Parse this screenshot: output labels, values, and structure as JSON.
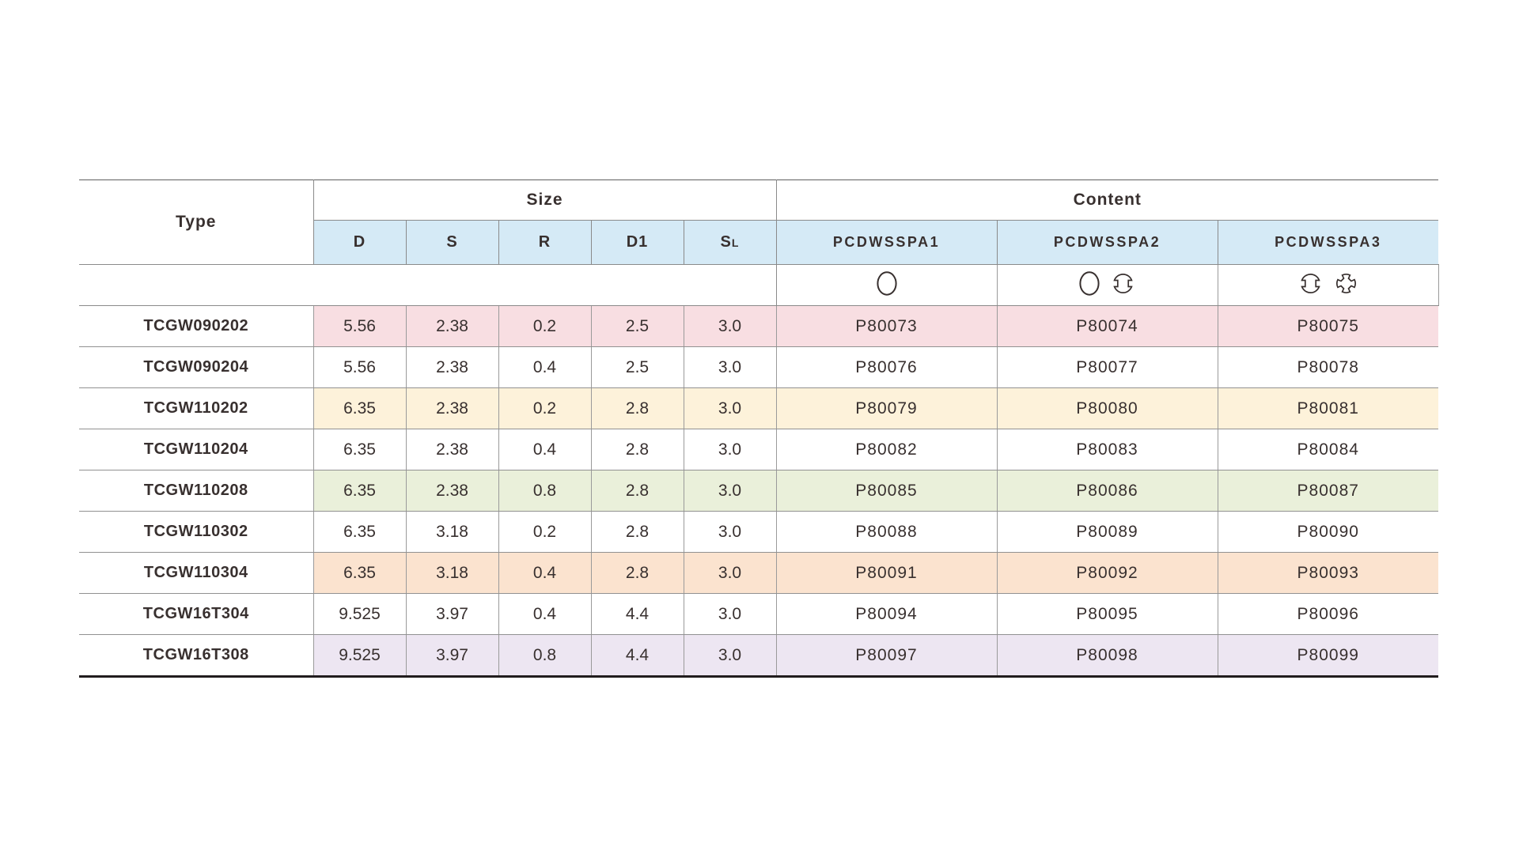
{
  "table": {
    "headers": {
      "type": "Type",
      "size": "Size",
      "content": "Content",
      "size_cols": [
        "D",
        "S",
        "R",
        "D1"
      ],
      "sl_main": "S",
      "sl_sub": "L",
      "content_cols": [
        "PCDWSSPA1",
        "PCDWSSPA2",
        "PCDWSSPA3"
      ]
    },
    "icon_columns": [
      [
        "circle"
      ],
      [
        "circle",
        "circle-2-notch"
      ],
      [
        "circle-2-notch",
        "circle-4-notch"
      ]
    ],
    "colors": {
      "header_blue": "#d5eaf6",
      "pink": "#f8dee2",
      "cream": "#fdf2da",
      "green": "#eaf0da",
      "peach": "#fbe3cf",
      "lavender": "#ede6f2",
      "icon_stroke": "#38302f",
      "text": "#38302f"
    },
    "rows": [
      {
        "type": "TCGW090202",
        "d": "5.56",
        "s": "2.38",
        "r": "0.2",
        "d1": "2.5",
        "sl": "3.0",
        "p1": "P80073",
        "p2": "P80074",
        "p3": "P80075",
        "highlight": "pink"
      },
      {
        "type": "TCGW090204",
        "d": "5.56",
        "s": "2.38",
        "r": "0.4",
        "d1": "2.5",
        "sl": "3.0",
        "p1": "P80076",
        "p2": "P80077",
        "p3": "P80078",
        "highlight": null
      },
      {
        "type": "TCGW110202",
        "d": "6.35",
        "s": "2.38",
        "r": "0.2",
        "d1": "2.8",
        "sl": "3.0",
        "p1": "P80079",
        "p2": "P80080",
        "p3": "P80081",
        "highlight": "cream"
      },
      {
        "type": "TCGW110204",
        "d": "6.35",
        "s": "2.38",
        "r": "0.4",
        "d1": "2.8",
        "sl": "3.0",
        "p1": "P80082",
        "p2": "P80083",
        "p3": "P80084",
        "highlight": null
      },
      {
        "type": "TCGW110208",
        "d": "6.35",
        "s": "2.38",
        "r": "0.8",
        "d1": "2.8",
        "sl": "3.0",
        "p1": "P80085",
        "p2": "P80086",
        "p3": "P80087",
        "highlight": "green"
      },
      {
        "type": "TCGW110302",
        "d": "6.35",
        "s": "3.18",
        "r": "0.2",
        "d1": "2.8",
        "sl": "3.0",
        "p1": "P80088",
        "p2": "P80089",
        "p3": "P80090",
        "highlight": null
      },
      {
        "type": "TCGW110304",
        "d": "6.35",
        "s": "3.18",
        "r": "0.4",
        "d1": "2.8",
        "sl": "3.0",
        "p1": "P80091",
        "p2": "P80092",
        "p3": "P80093",
        "highlight": "peach"
      },
      {
        "type": "TCGW16T304",
        "d": "9.525",
        "s": "3.97",
        "r": "0.4",
        "d1": "4.4",
        "sl": "3.0",
        "p1": "P80094",
        "p2": "P80095",
        "p3": "P80096",
        "highlight": null
      },
      {
        "type": "TCGW16T308",
        "d": "9.525",
        "s": "3.97",
        "r": "0.8",
        "d1": "4.4",
        "sl": "3.0",
        "p1": "P80097",
        "p2": "P80098",
        "p3": "P80099",
        "highlight": "lavender"
      }
    ]
  }
}
